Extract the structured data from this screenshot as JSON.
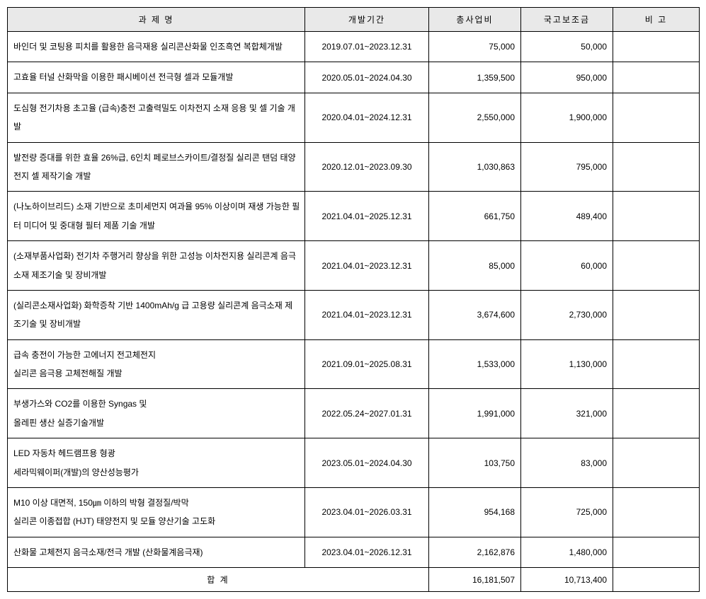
{
  "table": {
    "headers": {
      "project": "과 제 명",
      "period": "개발기간",
      "total_cost": "총사업비",
      "subsidy": "국고보조금",
      "remark": "비 고"
    },
    "rows": [
      {
        "project": "바인더 및 코팅용 피치를 활용한 음극재용 실리콘산화물 인조흑연 복합체개발",
        "period": "2019.07.01~2023.12.31",
        "total": "75,000",
        "subsidy": "50,000",
        "remark": ""
      },
      {
        "project": "고효율 터널 산화막을 이용한 패시베이션 전극형 셀과 모듈개발",
        "period": "2020.05.01~2024.04.30",
        "total": "1,359,500",
        "subsidy": "950,000",
        "remark": ""
      },
      {
        "project": "도심형 전기차용 초고율 (급속)충전 고출력밀도 이차전지 소재 응용 및 셀 기술 개발",
        "period": "2020.04.01~2024.12.31",
        "total": "2,550,000",
        "subsidy": "1,900,000",
        "remark": ""
      },
      {
        "project": "발전량 증대를 위한 효율 26%급, 6인치 페로브스카이트/결정질 실리콘 탠덤 태양전지 셀 제작기술 개발",
        "period": "2020.12.01~2023.09.30",
        "total": "1,030,863",
        "subsidy": "795,000",
        "remark": ""
      },
      {
        "project": "(나노하이브리드) 소재 기반으로 초미세먼지 여과율 95% 이상이며 재생 가능한 필터 미디어 및 중대형 필터 제품 기술 개발",
        "period": "2021.04.01~2025.12.31",
        "total": "661,750",
        "subsidy": "489,400",
        "remark": ""
      },
      {
        "project": "(소재부품사업화) 전기차 주행거리 향상을 위한 고성능 이차전지용 실리콘계 음극소재 제조기술 및 장비개발",
        "period": "2021.04.01~2023.12.31",
        "total": "85,000",
        "subsidy": "60,000",
        "remark": ""
      },
      {
        "project": "(실리콘소재사업화) 화학증착 기반 1400mAh/g 급 고용량 실리콘계 음극소재 제조기술 및 장비개발",
        "period": "2021.04.01~2023.12.31",
        "total": "3,674,600",
        "subsidy": "2,730,000",
        "remark": ""
      },
      {
        "project": "급속 충전이 가능한 고에너지 전고체전지\n실리콘 음극용 고체전해질 개발",
        "period": "2021.09.01~2025.08.31",
        "total": "1,533,000",
        "subsidy": "1,130,000",
        "remark": ""
      },
      {
        "project": "부생가스와 CO2를 이용한 Syngas 및\n올레핀 생산 실증기술개발",
        "period": "2022.05.24~2027.01.31",
        "total": "1,991,000",
        "subsidy": "321,000",
        "remark": ""
      },
      {
        "project": "LED 자동차 헤드램프용 형광\n세라믹웨이퍼(개발)의 양산성능평가",
        "period": "2023.05.01~2024.04.30",
        "total": "103,750",
        "subsidy": "83,000",
        "remark": ""
      },
      {
        "project": "M10 이상 대면적, 150㎛ 이하의 박형 결정질/박막\n실리콘 이종접합 (HJT) 태양전지 및 모듈 양산기술 고도화",
        "period": "2023.04.01~2026.03.31",
        "total": "954,168",
        "subsidy": "725,000",
        "remark": ""
      },
      {
        "project": "산화물 고체전지 음극소재/전극 개발 (산화물계음극재)",
        "period": "2023.04.01~2026.12.31",
        "total": "2,162,876",
        "subsidy": "1,480,000",
        "remark": ""
      }
    ],
    "footer": {
      "label": "합 계",
      "total": "16,181,507",
      "subsidy": "10,713,400",
      "remark": ""
    }
  }
}
